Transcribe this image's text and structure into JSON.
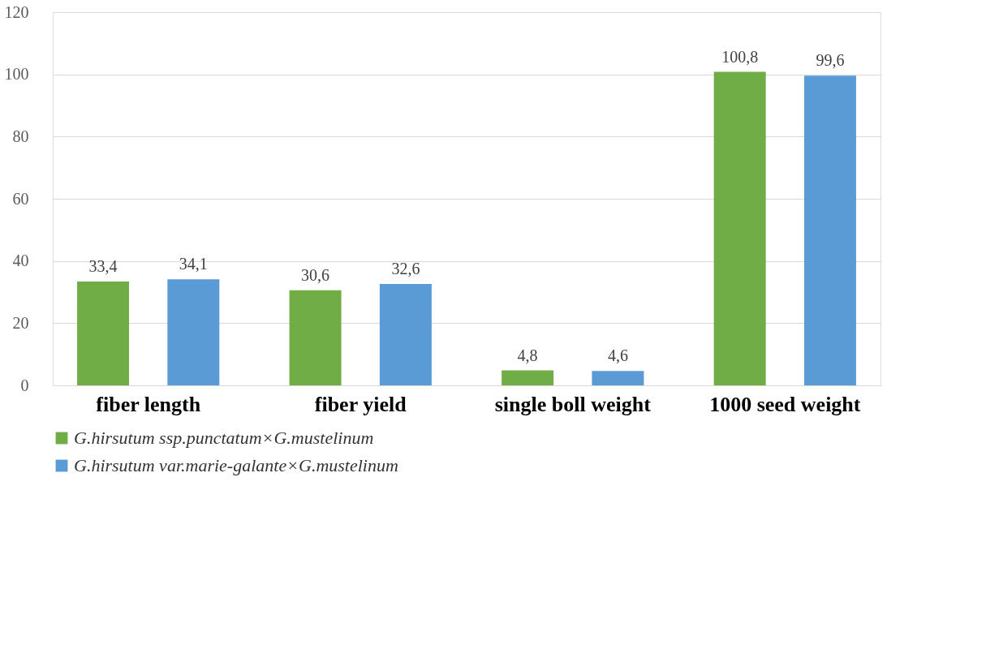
{
  "chart_data": {
    "type": "bar",
    "categories": [
      "fiber length",
      "fiber yield",
      "single boll weight",
      "1000 seed weight"
    ],
    "series": [
      {
        "name": "G.hirsutum ssp.punctatum×G.mustelinum",
        "color": "#70ad47",
        "values": [
          33.4,
          30.6,
          4.8,
          100.8
        ],
        "value_labels": [
          "33,4",
          "30,6",
          "4,8",
          "100,8"
        ]
      },
      {
        "name": "G.hirsutum var.marie-galante×G.mustelinum",
        "color": "#5b9bd5",
        "values": [
          34.1,
          32.6,
          4.6,
          99.6
        ],
        "value_labels": [
          "34,1",
          "32,6",
          "4,6",
          "99,6"
        ]
      }
    ],
    "ylim": [
      0,
      120
    ],
    "yticks": [
      0,
      20,
      40,
      60,
      80,
      100,
      120
    ],
    "grid": "y",
    "legend": "bottom"
  }
}
